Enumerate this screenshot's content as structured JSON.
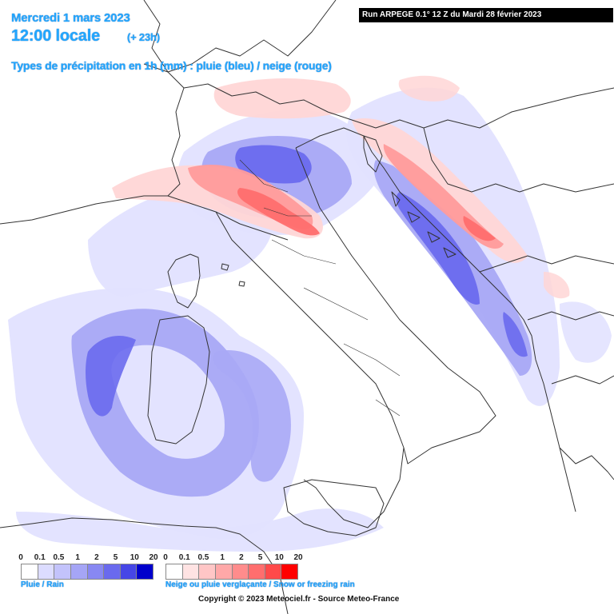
{
  "header": {
    "date": "Mercredi 1 mars 2023",
    "time": "12:00 locale",
    "lead": "(+ 23h)",
    "types": "Types de précipitation en 1h (mm) : pluie (bleu) / neige (rouge)"
  },
  "run_info": "Run ARPEGE 0.1° 12 Z du Mardi 28 février 2023",
  "legend_rain": {
    "title": "Pluie / Rain",
    "ticks": [
      "0",
      "0.1",
      "0.5",
      "1",
      "2",
      "5",
      "10",
      "20"
    ],
    "colors": [
      "#ffffff",
      "#dcdcff",
      "#c3c3fb",
      "#a5a5f6",
      "#8888f2",
      "#6a6aee",
      "#4646e6",
      "#0000cc"
    ]
  },
  "legend_snow": {
    "title": "Neige ou pluie verglaçante / Snow or freezing rain",
    "ticks": [
      "0",
      "0.1",
      "0.5",
      "1",
      "2",
      "5",
      "10",
      "20"
    ],
    "colors": [
      "#ffffff",
      "#ffe3e3",
      "#ffc6c6",
      "#ffa8a8",
      "#ff8c8c",
      "#ff6e6e",
      "#ff4a4a",
      "#ff0000"
    ]
  },
  "copyright": "Copyright © 2023 Meteociel.fr - Source Meteo-France",
  "map_colors": {
    "rain_light": "#e2e2ff",
    "rain_mid": "#a8a8f6",
    "rain_dark": "#6a6aee",
    "snow_light": "#ffd6d6",
    "snow_mid": "#ff9b9b",
    "snow_dark": "#ff6e6e",
    "border": "#333333"
  }
}
